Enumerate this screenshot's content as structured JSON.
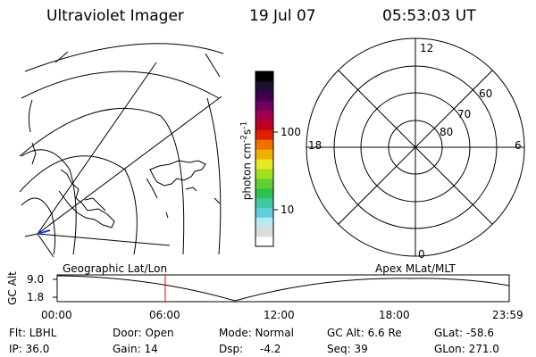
{
  "header": {
    "instrument": "Ultraviolet Imager",
    "date": "19 Jul 07",
    "time": "05:53:03 UT"
  },
  "colorbar": {
    "label": "photon cm",
    "label_exp1": "-2",
    "label_s": "s",
    "label_exp2": "-1",
    "tick_100": "100",
    "tick_10": "10",
    "colors": [
      "#ffffff",
      "#dcdcdc",
      "#b8e8f0",
      "#5fd0e0",
      "#40c8a0",
      "#30c050",
      "#60d030",
      "#a0e020",
      "#e8e820",
      "#f0b000",
      "#f07000",
      "#e02000",
      "#c00020",
      "#a00050",
      "#700060",
      "#400050",
      "#201030",
      "#000000"
    ]
  },
  "polar_plot": {
    "mlt_12": "12",
    "mlt_18": "18",
    "mlt_6": "6",
    "mlt_0": "0",
    "lat_60": "60",
    "lat_70": "70",
    "lat_80": "80"
  },
  "orbit": {
    "left_label": "Geographic Lat/Lon",
    "right_label": "Apex MLat/MLT",
    "axis_label": "GC Alt",
    "y_max": "9.0",
    "y_min": "1.8",
    "time_ticks": [
      "00:00",
      "06:00",
      "12:00",
      "18:00",
      "23:59"
    ],
    "current_marker_color": "#e00000"
  },
  "footer": {
    "flt": "Flt: LBHL",
    "ip": "IP: 36.0",
    "door": "Door: Open",
    "gain": "Gain: 14",
    "mode": "Mode: Normal",
    "dsp_label": "Dsp:",
    "dsp_value": "-4.2",
    "gc_alt": "GC Alt: 6.6 Re",
    "seq": "Seq: 39",
    "glat": "GLat: -58.6",
    "glon": "GLon: 271.0"
  }
}
